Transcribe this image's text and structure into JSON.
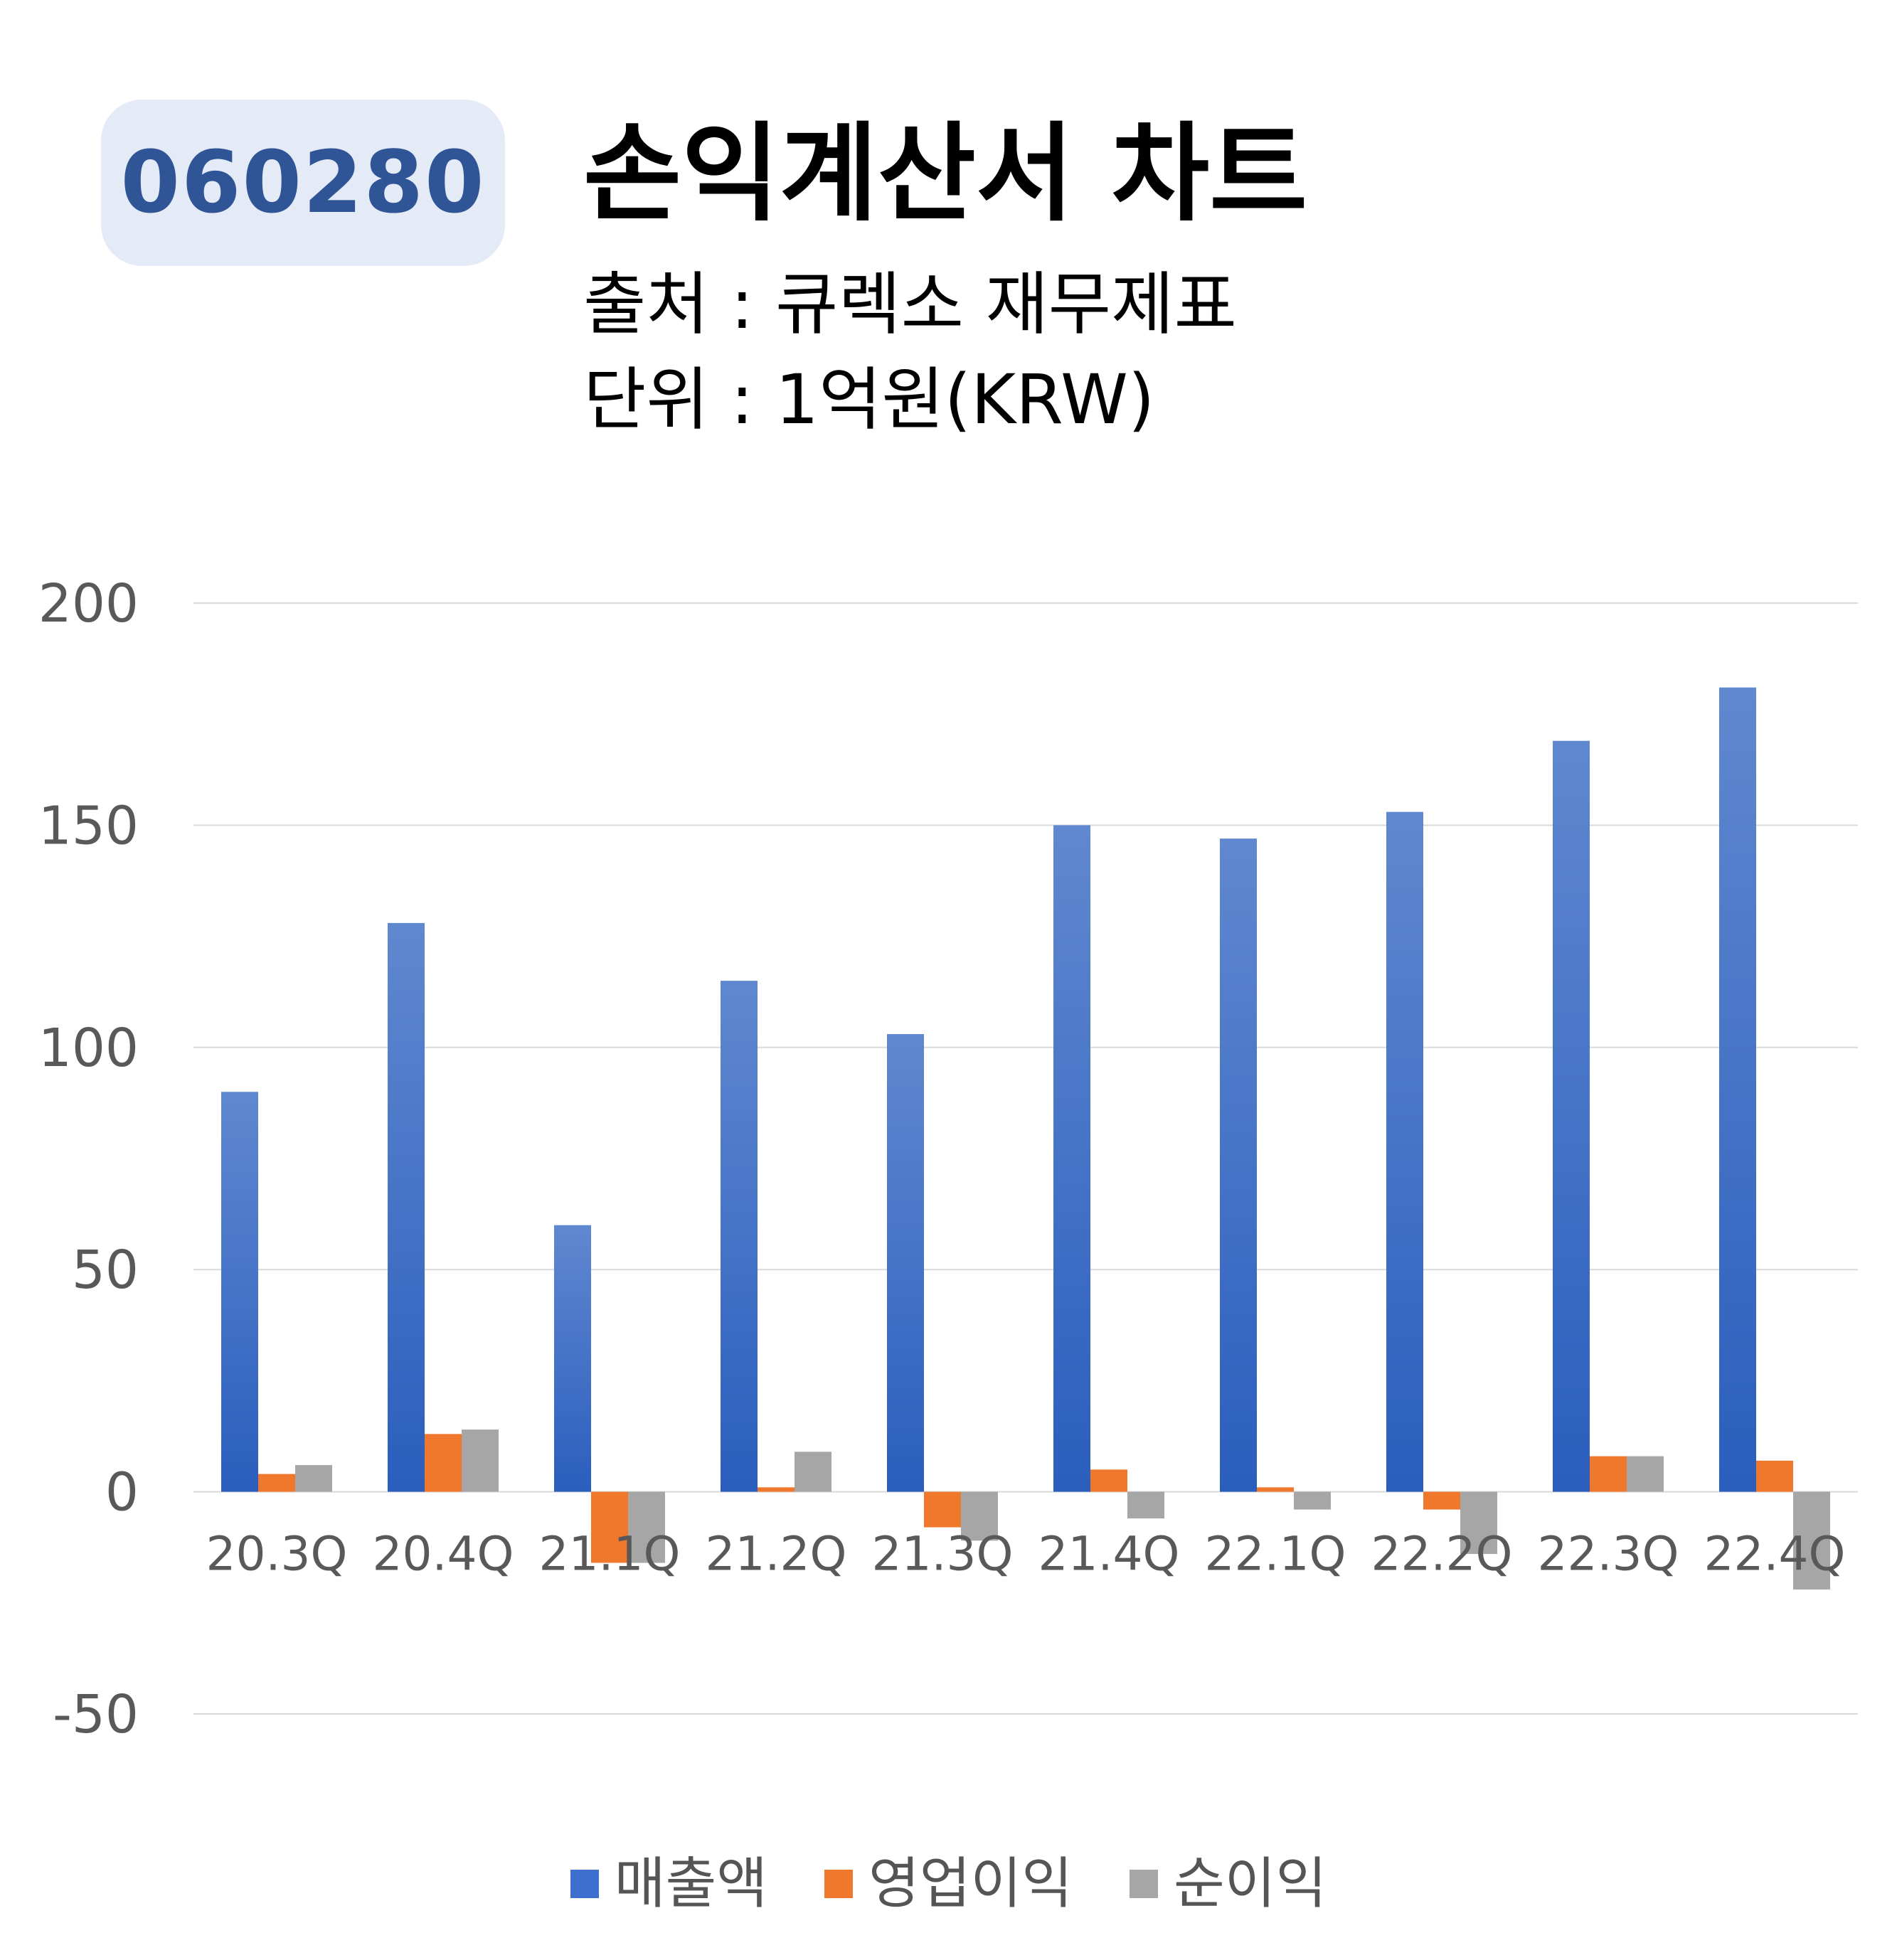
{
  "header": {
    "ticker": "060280",
    "title": "손익계산서 차트",
    "source": "출처 : 큐렉소 재무제표",
    "unit": "단위 : 1억원(KRW)"
  },
  "colors": {
    "series_blue": "#3f6fce",
    "series_orange": "#f0782d",
    "series_gray": "#a6a6a6",
    "badge_bg": "#e4eaf6",
    "badge_text": "#2f5597"
  },
  "chart_data": {
    "type": "bar",
    "categories": [
      "20.3Q",
      "20.4Q",
      "21.1Q",
      "21.2Q",
      "21.3Q",
      "21.4Q",
      "22.1Q",
      "22.2Q",
      "22.3Q",
      "22.4Q"
    ],
    "series": [
      {
        "name": "매출액",
        "values": [
          90,
          128,
          60,
          115,
          103,
          150,
          147,
          153,
          169,
          181
        ]
      },
      {
        "name": "영업이익",
        "values": [
          4,
          13,
          -16,
          1,
          -8,
          5,
          1,
          -4,
          8,
          7
        ]
      },
      {
        "name": "순이익",
        "values": [
          6,
          14,
          -16,
          9,
          -11,
          -6,
          -4,
          -14,
          8,
          -22
        ]
      }
    ],
    "ylim": [
      -50,
      200
    ],
    "yticks": [
      "-50",
      "0",
      "50",
      "100",
      "150",
      "200"
    ],
    "grid": true,
    "legend": "bottom"
  }
}
